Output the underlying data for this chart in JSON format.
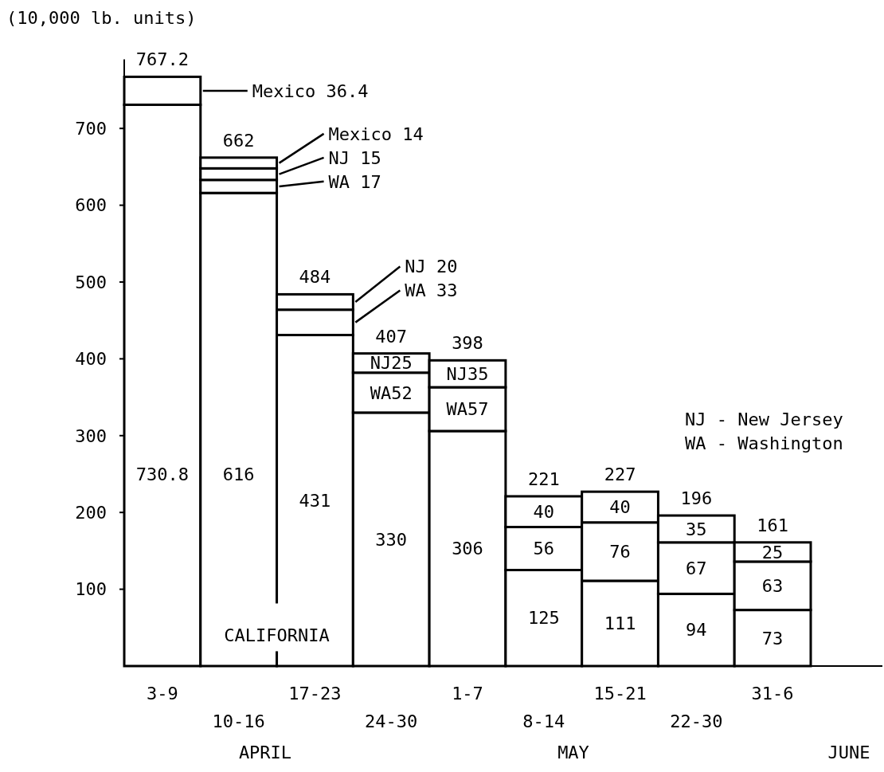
{
  "chart_data": {
    "type": "bar",
    "stacked": true,
    "ylabel": "(10,000 lb. units)",
    "categories": [
      "3-9",
      "10-16",
      "17-23",
      "24-30",
      "1-7",
      "8-14",
      "15-21",
      "22-30",
      "31-6"
    ],
    "ylim": [
      0,
      790
    ],
    "yticks": [
      100,
      200,
      300,
      400,
      500,
      600,
      700
    ],
    "series": [
      {
        "name": "CALIFORNIA",
        "color": "#ffffff",
        "values": [
          730.8,
          616,
          431,
          330,
          306,
          125,
          111,
          94,
          73
        ],
        "value_labels": [
          "730.8",
          "616",
          "431",
          "330",
          "306",
          "125",
          "111",
          "94",
          "73"
        ]
      },
      {
        "color": "#ffffff",
        "values": [
          null,
          17,
          33,
          52,
          57,
          56,
          76,
          67,
          63
        ],
        "value_labels": [
          null,
          "WA 17",
          "WA 33",
          "WA52",
          "WA57",
          "56",
          "76",
          "67",
          "63"
        ]
      },
      {
        "color": "#ffffff",
        "values": [
          null,
          15,
          20,
          25,
          35,
          40,
          40,
          35,
          25
        ],
        "value_labels": [
          null,
          "NJ 15",
          "NJ 20",
          "NJ25",
          "NJ35",
          "40",
          "40",
          "35",
          "25"
        ]
      },
      {
        "color": "#ffffff",
        "values": [
          36.4,
          14,
          null,
          null,
          null,
          null,
          null,
          null,
          null
        ],
        "value_labels": [
          "Mexico 36.4",
          "Mexico 14",
          null,
          null,
          null,
          null,
          null,
          null,
          null
        ]
      }
    ],
    "totals": [
      "767.2",
      "662",
      "484",
      "407",
      "398",
      "221",
      "227",
      "196",
      "161"
    ],
    "annotations": [
      "NJ - New Jersey",
      "WA - Washington",
      "APRIL",
      "MAY",
      "JUNE"
    ]
  }
}
